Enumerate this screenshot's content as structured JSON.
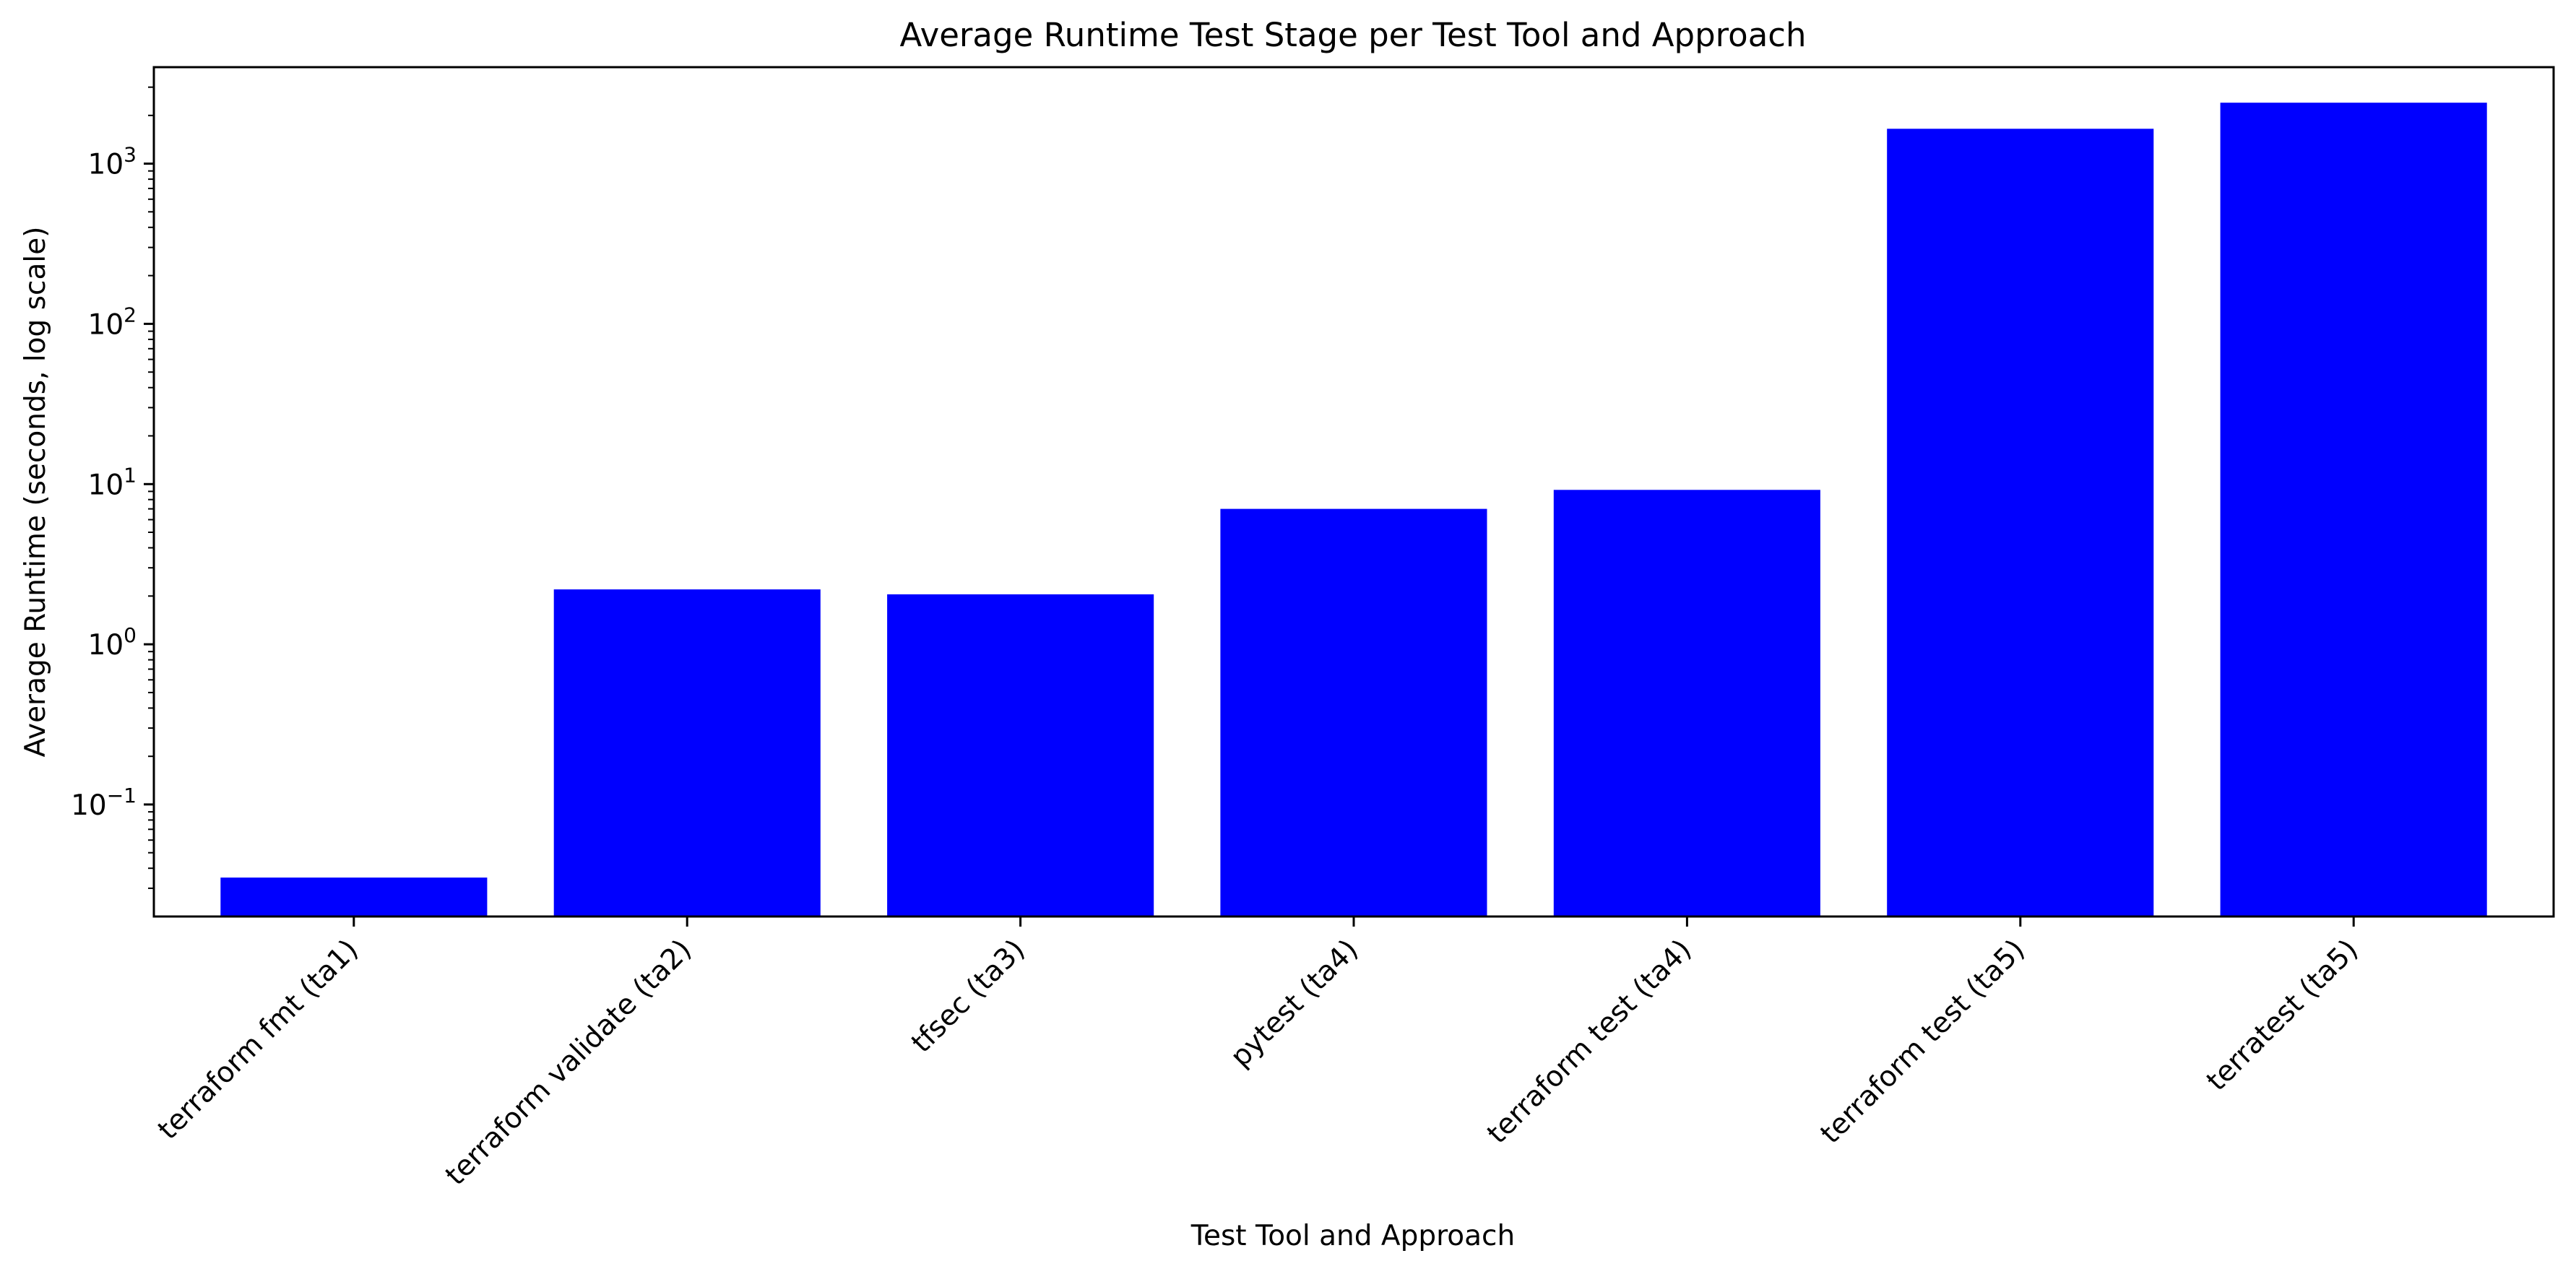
{
  "chart_data": {
    "type": "bar",
    "title": "Average Runtime Test Stage per Test Tool and Approach",
    "xlabel": "Test Tool and Approach",
    "ylabel": "Average Runtime (seconds, log scale)",
    "yscale": "log",
    "ylim": [
      0.02,
      4000
    ],
    "yticks": [
      {
        "value": 0.1,
        "base": "10",
        "exp": "−1"
      },
      {
        "value": 1,
        "base": "10",
        "exp": "0"
      },
      {
        "value": 10,
        "base": "10",
        "exp": "1"
      },
      {
        "value": 100,
        "base": "10",
        "exp": "2"
      },
      {
        "value": 1000,
        "base": "10",
        "exp": "3"
      }
    ],
    "categories": [
      "terraform fmt (ta1)",
      "terraform validate (ta2)",
      "tfsec (ta3)",
      "pytest (ta4)",
      "terraform test (ta4)",
      "terraform test (ta5)",
      "terratest (ta5)"
    ],
    "values": [
      0.035,
      2.2,
      2.05,
      7.0,
      9.2,
      1650,
      2400
    ],
    "bar_color": "#0000ff"
  }
}
